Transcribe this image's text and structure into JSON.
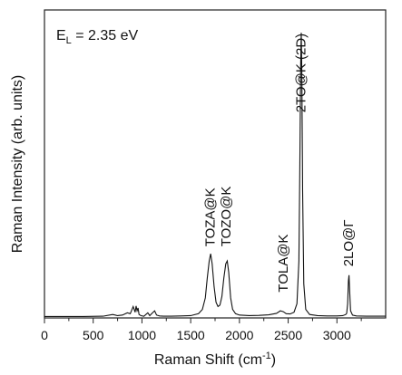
{
  "chart_data": {
    "type": "line",
    "annotation_main": "E",
    "annotation_sub": "L",
    "annotation_rest": " = 2.35 eV",
    "xlabel_main": "Raman Shift (cm",
    "xlabel_sup": "-1",
    "xlabel_end": ")",
    "ylabel": "Raman Intensity (arb. units)",
    "xlim": [
      0,
      3500
    ],
    "ylim": [
      0,
      1.08
    ],
    "xticks": [
      0,
      500,
      1000,
      1500,
      2000,
      2500,
      3000
    ],
    "xticks_minor": [
      250,
      750,
      1250,
      1750,
      2250,
      2750,
      3250
    ],
    "grid": false,
    "legend": "none",
    "peak_labels": [
      {
        "text": "TOZA@K",
        "x": 1700,
        "y": 0.25
      },
      {
        "text": "TOZO@K",
        "x": 1860,
        "y": 0.25
      },
      {
        "text": "TOLA@K",
        "x": 2450,
        "y": 0.09
      },
      {
        "text": "2TO@K (2D)",
        "x": 2630,
        "y": 0.72
      },
      {
        "text": "2LO@Γ",
        "x": 3120,
        "y": 0.18
      }
    ],
    "series": [
      {
        "values": {
          "x": [
            0,
            200,
            400,
            600,
            700,
            750,
            800,
            850,
            880,
            910,
            930,
            940,
            950,
            960,
            970,
            990,
            1020,
            1060,
            1080,
            1100,
            1130,
            1150,
            1180,
            1220,
            1300,
            1400,
            1500,
            1580,
            1620,
            1650,
            1670,
            1690,
            1705,
            1720,
            1740,
            1760,
            1780,
            1800,
            1820,
            1840,
            1860,
            1875,
            1890,
            1910,
            1930,
            1960,
            2000,
            2100,
            2200,
            2300,
            2380,
            2420,
            2450,
            2480,
            2520,
            2560,
            2590,
            2610,
            2620,
            2628,
            2634,
            2640,
            2648,
            2660,
            2680,
            2720,
            2800,
            2900,
            3000,
            3060,
            3090,
            3100,
            3110,
            3118,
            3124,
            3130,
            3140,
            3160,
            3200,
            3300,
            3400,
            3500
          ],
          "y": [
            0.005,
            0.005,
            0.005,
            0.006,
            0.012,
            0.008,
            0.01,
            0.018,
            0.015,
            0.04,
            0.02,
            0.042,
            0.025,
            0.035,
            0.012,
            0.008,
            0.006,
            0.018,
            0.008,
            0.015,
            0.025,
            0.01,
            0.007,
            0.006,
            0.006,
            0.007,
            0.008,
            0.015,
            0.03,
            0.07,
            0.14,
            0.2,
            0.225,
            0.19,
            0.11,
            0.055,
            0.04,
            0.045,
            0.075,
            0.14,
            0.19,
            0.2,
            0.16,
            0.07,
            0.03,
            0.015,
            0.01,
            0.008,
            0.009,
            0.011,
            0.016,
            0.025,
            0.022,
            0.015,
            0.014,
            0.02,
            0.05,
            0.2,
            0.55,
            0.88,
            1.0,
            0.86,
            0.45,
            0.12,
            0.03,
            0.012,
            0.008,
            0.007,
            0.007,
            0.008,
            0.012,
            0.016,
            0.05,
            0.13,
            0.15,
            0.1,
            0.025,
            0.01,
            0.007,
            0.006,
            0.006,
            0.006
          ]
        }
      }
    ]
  }
}
